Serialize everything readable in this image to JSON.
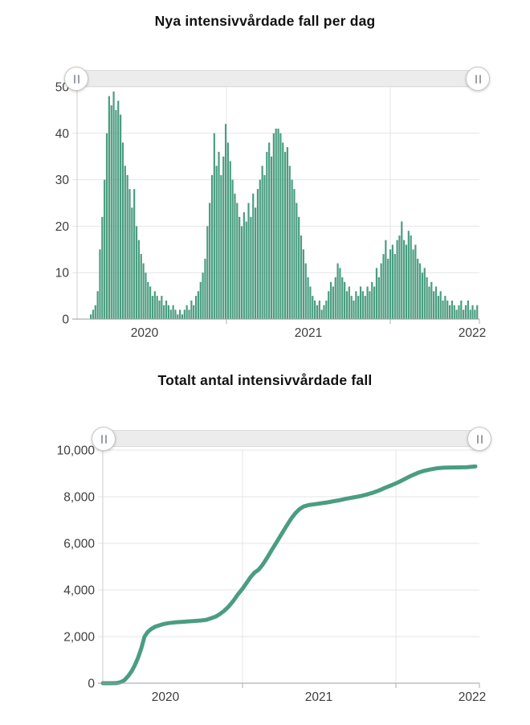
{
  "page": {
    "background": "#ffffff",
    "accent_color": "#4a9d80"
  },
  "chart_data": [
    {
      "id": "daily-icu-cases",
      "type": "bar",
      "title": "Nya intensivvårdade fall per dag",
      "color": "#4a9d80",
      "has_range_slider": true,
      "y_axis": {
        "ticks": [
          "0",
          "10",
          "20",
          "30",
          "40",
          "50"
        ],
        "values": [
          0,
          10,
          20,
          30,
          40,
          50
        ],
        "max": 50,
        "grid": true
      },
      "x_axis": {
        "labels": [
          "2020",
          "2021",
          "2022"
        ]
      },
      "values": [
        1,
        2,
        3,
        6,
        15,
        22,
        30,
        40,
        48,
        46,
        49,
        45,
        47,
        44,
        38,
        33,
        31,
        28,
        24,
        28,
        20,
        17,
        14,
        12,
        10,
        8,
        7,
        5,
        6,
        5,
        4,
        5,
        3,
        4,
        3,
        2,
        3,
        2,
        1,
        2,
        1,
        2,
        3,
        2,
        4,
        3,
        5,
        6,
        8,
        10,
        13,
        20,
        25,
        31,
        40,
        33,
        36,
        31,
        35,
        42,
        38,
        34,
        30,
        27,
        25,
        22,
        20,
        23,
        21,
        25,
        22,
        27,
        24,
        28,
        30,
        33,
        31,
        36,
        38,
        35,
        40,
        41,
        41,
        40,
        38,
        36,
        37,
        33,
        30,
        28,
        25,
        22,
        18,
        15,
        12,
        9,
        7,
        5,
        4,
        3,
        4,
        2,
        3,
        4,
        6,
        8,
        7,
        9,
        12,
        11,
        9,
        8,
        6,
        7,
        5,
        4,
        6,
        5,
        7,
        6,
        5,
        7,
        6,
        8,
        7,
        11,
        9,
        12,
        14,
        17,
        13,
        15,
        16,
        14,
        17,
        18,
        21,
        17,
        16,
        19,
        18,
        15,
        16,
        13,
        12,
        10,
        11,
        9,
        7,
        8,
        6,
        7,
        5,
        6,
        4,
        5,
        4,
        3,
        4,
        3,
        2,
        3,
        4,
        2,
        3,
        4,
        2,
        3,
        2,
        3
      ]
    },
    {
      "id": "total-icu-cases",
      "type": "line",
      "title": "Totalt antal intensivvårdade fall",
      "color": "#4a9d80",
      "has_range_slider": true,
      "y_axis": {
        "ticks": [
          "0",
          "2,000",
          "4,000",
          "6,000",
          "8,000",
          "10,000"
        ],
        "values": [
          0,
          2000,
          4000,
          6000,
          8000,
          10000
        ],
        "max": 10000,
        "grid": true
      },
      "x_axis": {
        "labels": [
          "2020",
          "2021",
          "2022"
        ]
      },
      "points": [
        [
          128,
          0
        ],
        [
          136,
          0
        ],
        [
          144,
          5
        ],
        [
          150,
          40
        ],
        [
          155,
          130
        ],
        [
          160,
          320
        ],
        [
          164,
          520
        ],
        [
          168,
          780
        ],
        [
          172,
          1100
        ],
        [
          176,
          1500
        ],
        [
          180,
          2000
        ],
        [
          184,
          2200
        ],
        [
          188,
          2320
        ],
        [
          193,
          2420
        ],
        [
          198,
          2480
        ],
        [
          204,
          2540
        ],
        [
          210,
          2580
        ],
        [
          218,
          2610
        ],
        [
          226,
          2630
        ],
        [
          234,
          2650
        ],
        [
          242,
          2670
        ],
        [
          250,
          2690
        ],
        [
          257,
          2720
        ],
        [
          263,
          2790
        ],
        [
          268,
          2850
        ],
        [
          273,
          2950
        ],
        [
          279,
          3100
        ],
        [
          285,
          3300
        ],
        [
          291,
          3550
        ],
        [
          296,
          3800
        ],
        [
          302,
          4050
        ],
        [
          307,
          4300
        ],
        [
          312,
          4550
        ],
        [
          317,
          4750
        ],
        [
          322,
          4870
        ],
        [
          327,
          5080
        ],
        [
          333,
          5400
        ],
        [
          339,
          5750
        ],
        [
          345,
          6080
        ],
        [
          351,
          6420
        ],
        [
          357,
          6760
        ],
        [
          363,
          7080
        ],
        [
          368,
          7300
        ],
        [
          373,
          7470
        ],
        [
          378,
          7580
        ],
        [
          384,
          7640
        ],
        [
          392,
          7680
        ],
        [
          400,
          7720
        ],
        [
          408,
          7760
        ],
        [
          416,
          7810
        ],
        [
          424,
          7860
        ],
        [
          432,
          7920
        ],
        [
          440,
          7970
        ],
        [
          448,
          8020
        ],
        [
          456,
          8090
        ],
        [
          464,
          8170
        ],
        [
          472,
          8270
        ],
        [
          480,
          8390
        ],
        [
          488,
          8500
        ],
        [
          496,
          8620
        ],
        [
          504,
          8760
        ],
        [
          512,
          8900
        ],
        [
          520,
          9020
        ],
        [
          528,
          9110
        ],
        [
          536,
          9170
        ],
        [
          544,
          9220
        ],
        [
          552,
          9245
        ],
        [
          562,
          9255
        ],
        [
          572,
          9260
        ],
        [
          582,
          9270
        ],
        [
          592,
          9300
        ]
      ]
    }
  ]
}
